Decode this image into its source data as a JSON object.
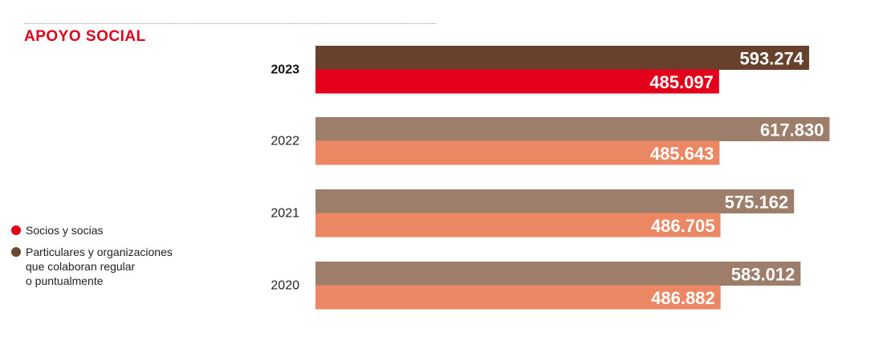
{
  "title": "APOYO SOCIAL",
  "legend": [
    {
      "label": "Socios y socias",
      "color": "#e2001a"
    },
    {
      "label": "Particulares y organizaciones\nque colaboran regular\no puntualmente",
      "color": "#6b4631"
    }
  ],
  "colors": {
    "current_top": "#67412b",
    "current_bottom": "#e2001a",
    "past_top": "#9c7e6a",
    "past_bottom": "#ec8764"
  },
  "chart_data": {
    "type": "bar",
    "orientation": "horizontal",
    "categories": [
      "2023",
      "2022",
      "2021",
      "2020"
    ],
    "highlight": "2023",
    "series": [
      {
        "name": "Particulares y organizaciones que colaboran regular o puntualmente",
        "values": [
          593274,
          617830,
          575162,
          583012
        ],
        "labels": [
          "593.274",
          "617.830",
          "575.162",
          "583.012"
        ]
      },
      {
        "name": "Socios y socias",
        "values": [
          485097,
          485643,
          486705,
          486882
        ],
        "labels": [
          "485.097",
          "485.643",
          "486.705",
          "486.882"
        ]
      }
    ],
    "title": "APOYO SOCIAL",
    "xlabel": "",
    "ylabel": "",
    "xlim": [
      0,
      630000
    ],
    "grid": false
  }
}
